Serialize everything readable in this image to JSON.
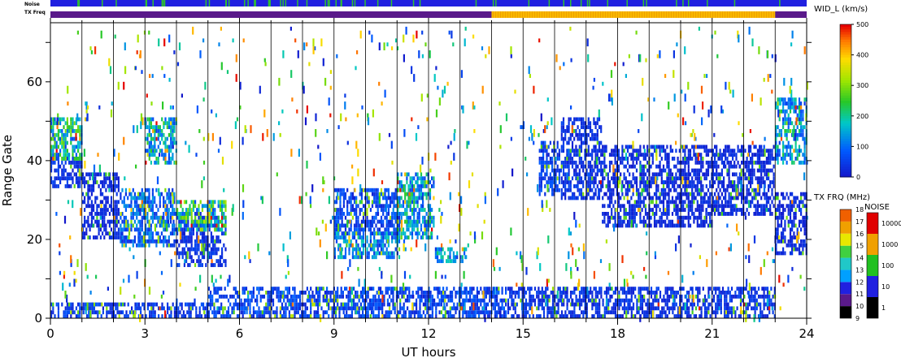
{
  "top_strips": {
    "noise_label": "Noise",
    "txfreq_label": "TX Freq"
  },
  "chart_data": {
    "type": "heatmap",
    "title": "",
    "xlabel": "UT hours",
    "ylabel": "Range Gate",
    "xlim": [
      0,
      24
    ],
    "ylim": [
      0,
      75
    ],
    "x_ticks": [
      0,
      3,
      6,
      9,
      12,
      15,
      18,
      21,
      24
    ],
    "y_ticks": [
      0,
      20,
      40,
      60
    ],
    "hour_gridlines": [
      1,
      2,
      3,
      4,
      5,
      6,
      7,
      8,
      9,
      10,
      11,
      12,
      13,
      14,
      15,
      16,
      17,
      18,
      19,
      20,
      21,
      22,
      23
    ],
    "colorbar_main": {
      "label": "WID_L (km/s)",
      "range": [
        0,
        500
      ],
      "ticks": [
        0,
        100,
        200,
        300,
        400,
        500
      ]
    },
    "colorbar_txfreq": {
      "label": "TX FRQ (MHz)",
      "ticks": [
        9,
        10,
        11,
        12,
        13,
        14,
        15,
        16,
        17,
        18
      ]
    },
    "colorbar_noise": {
      "label": "NOISE",
      "ticks": [
        "1",
        "10",
        "100",
        "1000",
        "10000"
      ]
    },
    "echo_regions": [
      {
        "t0": 0.0,
        "t1": 1.0,
        "g_lo": 33,
        "g_hi": 40,
        "width": 40
      },
      {
        "t0": 0.0,
        "t1": 1.0,
        "g_lo": 40,
        "g_hi": 50,
        "width": 180
      },
      {
        "t0": 1.0,
        "t1": 2.2,
        "g_lo": 20,
        "g_hi": 36,
        "width": 30
      },
      {
        "t0": 2.2,
        "t1": 4.0,
        "g_lo": 18,
        "g_hi": 32,
        "width": 90
      },
      {
        "t0": 3.0,
        "t1": 4.0,
        "g_lo": 39,
        "g_hi": 50,
        "width": 160
      },
      {
        "t0": 4.0,
        "t1": 5.6,
        "g_lo": 13,
        "g_hi": 26,
        "width": 40
      },
      {
        "t0": 4.0,
        "t1": 5.6,
        "g_lo": 22,
        "g_hi": 29,
        "width": 200
      },
      {
        "t0": 9.0,
        "t1": 11.1,
        "g_lo": 21,
        "g_hi": 32,
        "width": 60
      },
      {
        "t0": 9.0,
        "t1": 11.1,
        "g_lo": 15,
        "g_hi": 21,
        "width": 120
      },
      {
        "t0": 11.0,
        "t1": 12.2,
        "g_lo": 20,
        "g_hi": 36,
        "width": 150
      },
      {
        "t0": 12.2,
        "t1": 13.2,
        "g_lo": 14,
        "g_hi": 17,
        "width": 130
      },
      {
        "t0": 15.5,
        "t1": 16.2,
        "g_lo": 31,
        "g_hi": 44,
        "width": 60
      },
      {
        "t0": 16.2,
        "t1": 17.5,
        "g_lo": 30,
        "g_hi": 50,
        "width": 40
      },
      {
        "t0": 17.5,
        "t1": 21.0,
        "g_lo": 23,
        "g_hi": 43,
        "width": 30
      },
      {
        "t0": 21.0,
        "t1": 23.0,
        "g_lo": 26,
        "g_hi": 43,
        "width": 30
      },
      {
        "t0": 23.0,
        "t1": 24.0,
        "g_lo": 16,
        "g_hi": 31,
        "width": 30
      },
      {
        "t0": 23.0,
        "t1": 24.0,
        "g_lo": 39,
        "g_hi": 55,
        "width": 150
      },
      {
        "t0": 5.0,
        "t1": 14.5,
        "g_lo": 0,
        "g_hi": 7,
        "width": 60
      },
      {
        "t0": 14.5,
        "t1": 23.0,
        "g_lo": 0,
        "g_hi": 7,
        "width": 40
      },
      {
        "t0": 0.0,
        "t1": 5.0,
        "g_lo": 0,
        "g_hi": 3,
        "width": 50
      }
    ],
    "tx_freq_segments": [
      {
        "t0": 0.0,
        "t1": 14.0,
        "mhz": 9.8
      },
      {
        "t0": 14.0,
        "t1": 23.0,
        "mhz": 15.2
      },
      {
        "t0": 23.0,
        "t1": 24.0,
        "mhz": 9.8
      }
    ],
    "colors": {
      "background": "#ffffff",
      "strip_noise_base": "#2020e0",
      "strip_noise_spike": "#30c030",
      "strip_tx_low": "#5a1a8a",
      "strip_tx_high": "#f0a000"
    }
  }
}
